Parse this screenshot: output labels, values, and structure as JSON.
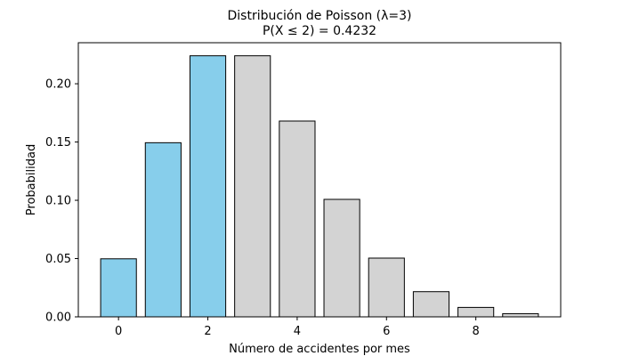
{
  "chart_data": {
    "type": "bar",
    "title": "Distribución de Poisson (λ=3)",
    "subtitle": "P(X ≤ 2) = 0.4232",
    "xlabel": "Número de accidentes por mes",
    "ylabel": "Probabilidad",
    "x": [
      0,
      1,
      2,
      3,
      4,
      5,
      6,
      7,
      8,
      9
    ],
    "values": [
      0.0498,
      0.1494,
      0.224,
      0.224,
      0.168,
      0.1008,
      0.0504,
      0.0216,
      0.0081,
      0.0027
    ],
    "highlight_max_x": 2,
    "highlight_color": "#87CEEB",
    "base_color": "#D3D3D3",
    "edge_color": "#000000",
    "xlim": [
      -0.9,
      9.9
    ],
    "ylim": [
      0,
      0.2352
    ],
    "xticks": [
      0,
      2,
      4,
      6,
      8
    ],
    "yticks": [
      0.0,
      0.05,
      0.1,
      0.15,
      0.2
    ],
    "ytick_labels": [
      "0.00",
      "0.05",
      "0.10",
      "0.15",
      "0.20"
    ],
    "xtick_labels": [
      "0",
      "2",
      "4",
      "6",
      "8"
    ],
    "grid": false,
    "legend": "none"
  }
}
